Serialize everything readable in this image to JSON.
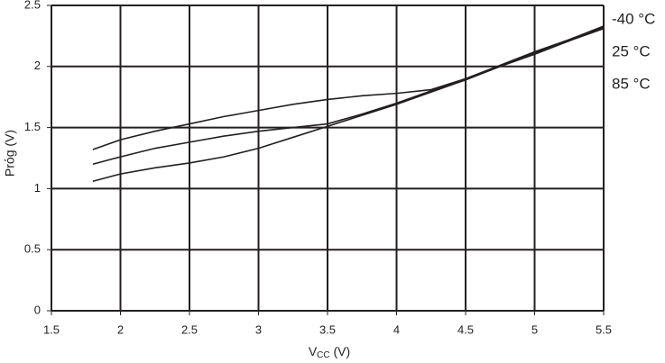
{
  "chart_data": {
    "type": "line",
    "xlabel": [
      "V",
      "CC",
      " (V)"
    ],
    "ylabel": "Prόg (V)",
    "x": [
      1.8,
      2,
      2.25,
      2.5,
      2.75,
      3,
      3.25,
      3.5,
      3.75,
      4,
      4.25,
      4.5,
      4.75,
      5,
      5.25,
      5.5
    ],
    "series": [
      {
        "name": "-40 °C",
        "color": "#231f20",
        "values": [
          1.32,
          1.4,
          1.47,
          1.53,
          1.59,
          1.64,
          1.69,
          1.73,
          1.76,
          1.78,
          1.81,
          1.9,
          2.01,
          2.12,
          2.22,
          2.33
        ]
      },
      {
        "name": "25 °C",
        "color": "#231f20",
        "values": [
          1.2,
          1.26,
          1.33,
          1.38,
          1.43,
          1.47,
          1.5,
          1.53,
          1.61,
          1.7,
          1.8,
          1.9,
          2.0,
          2.11,
          2.21,
          2.32
        ]
      },
      {
        "name": "85 °C",
        "color": "#231f20",
        "values": [
          1.06,
          1.12,
          1.17,
          1.21,
          1.26,
          1.33,
          1.42,
          1.51,
          1.6,
          1.69,
          1.79,
          1.89,
          2.0,
          2.1,
          2.21,
          2.31
        ]
      }
    ],
    "xlim": [
      1.5,
      5.5
    ],
    "xticks": [
      1.5,
      2,
      2.5,
      3,
      3.5,
      4,
      4.5,
      5,
      5.5
    ],
    "ylim": [
      0,
      2.5
    ],
    "yticks": [
      0,
      0.5,
      1,
      1.5,
      2,
      2.5
    ],
    "grid": true,
    "grid_color": "#231f20"
  }
}
